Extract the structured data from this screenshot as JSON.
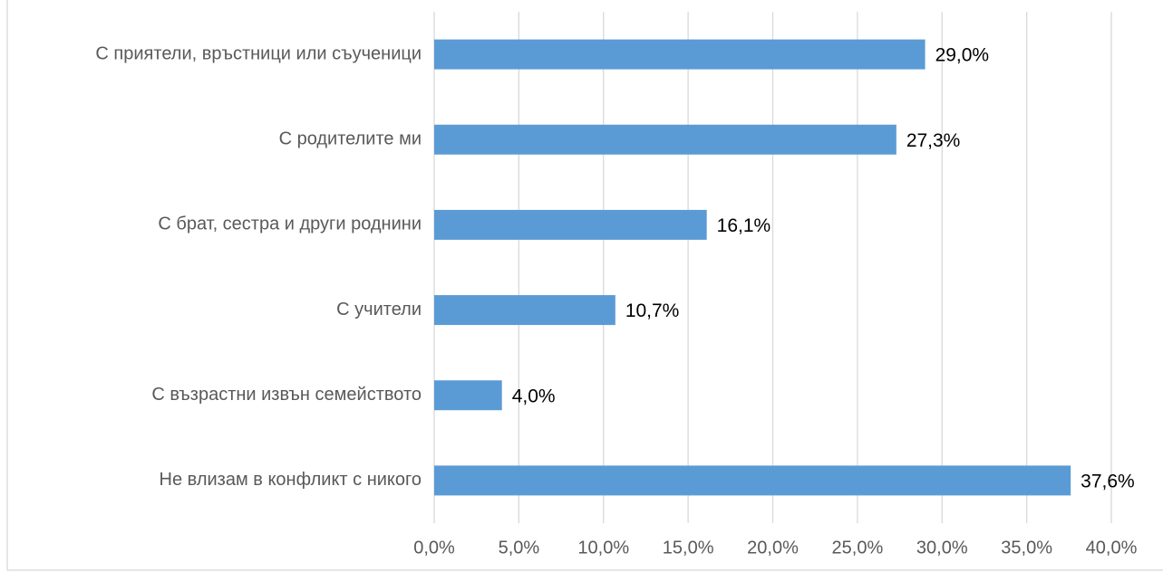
{
  "chart_data": {
    "type": "bar",
    "orientation": "horizontal",
    "categories": [
      "С приятели, връстници или съученици",
      "С родителите ми",
      "С брат, сестра и други роднини",
      "С учители",
      "С възрастни извън семейството",
      "Не влизам в конфликт с никого"
    ],
    "values": [
      29.0,
      27.3,
      16.1,
      10.7,
      4.0,
      37.6
    ],
    "value_labels": [
      "29,0%",
      "27,3%",
      "16,1%",
      "10,7%",
      "4,0%",
      "37,6%"
    ],
    "color": "#5b9bd5",
    "xlim": [
      0,
      40
    ],
    "xticks": [
      {
        "value": 0,
        "label": "0,0%"
      },
      {
        "value": 5,
        "label": "5,0%"
      },
      {
        "value": 10,
        "label": "10,0%"
      },
      {
        "value": 15,
        "label": "15,0%"
      },
      {
        "value": 20,
        "label": "20,0%"
      },
      {
        "value": 25,
        "label": "25,0%"
      },
      {
        "value": 30,
        "label": "30,0%"
      },
      {
        "value": 35,
        "label": "35,0%"
      },
      {
        "value": 40,
        "label": "40,0%"
      }
    ],
    "grid": true
  }
}
